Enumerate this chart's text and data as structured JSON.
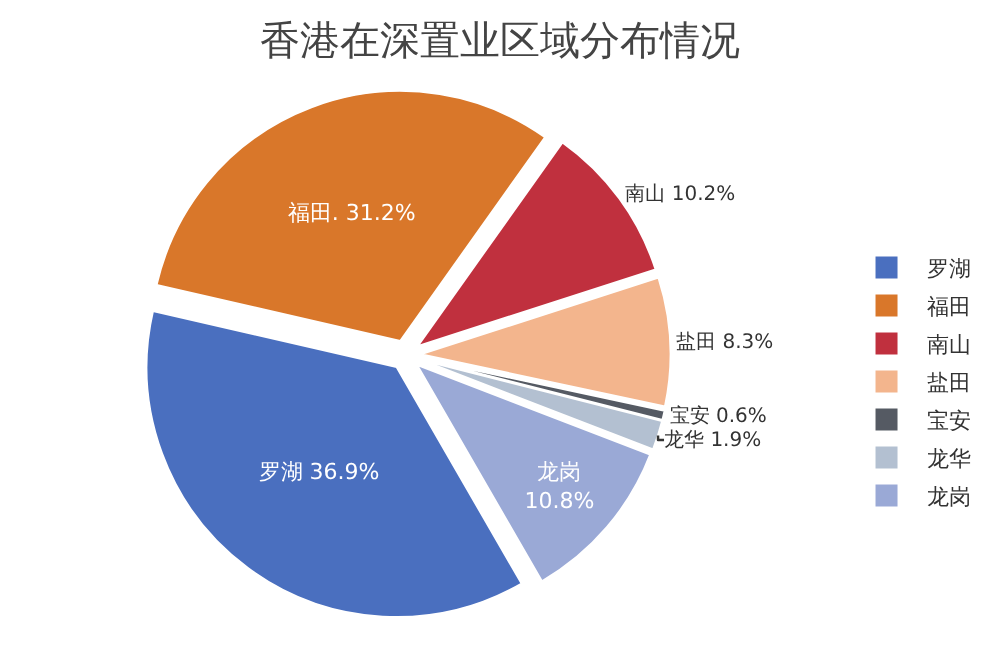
{
  "chart_data": {
    "type": "pie",
    "title": "香港在深置业区域分布情况",
    "categories": [
      "罗湖",
      "福田",
      "南山",
      "盐田",
      "宝安",
      "龙华",
      "龙岗"
    ],
    "values": [
      36.9,
      31.2,
      10.2,
      8.3,
      0.6,
      1.9,
      10.8
    ],
    "colors": [
      "#4a6fbf",
      "#d9772a",
      "#c0303e",
      "#f3b58d",
      "#555a63",
      "#b3c0d1",
      "#9aa9d6"
    ],
    "value_labels": [
      "罗湖 36.9%",
      "福田. 31.2%",
      "南山 10.2%",
      "盐田 8.3%",
      "宝安 0.6%",
      "龙华 1.9%",
      "龙岗\n10.8%"
    ],
    "legend": "right"
  }
}
